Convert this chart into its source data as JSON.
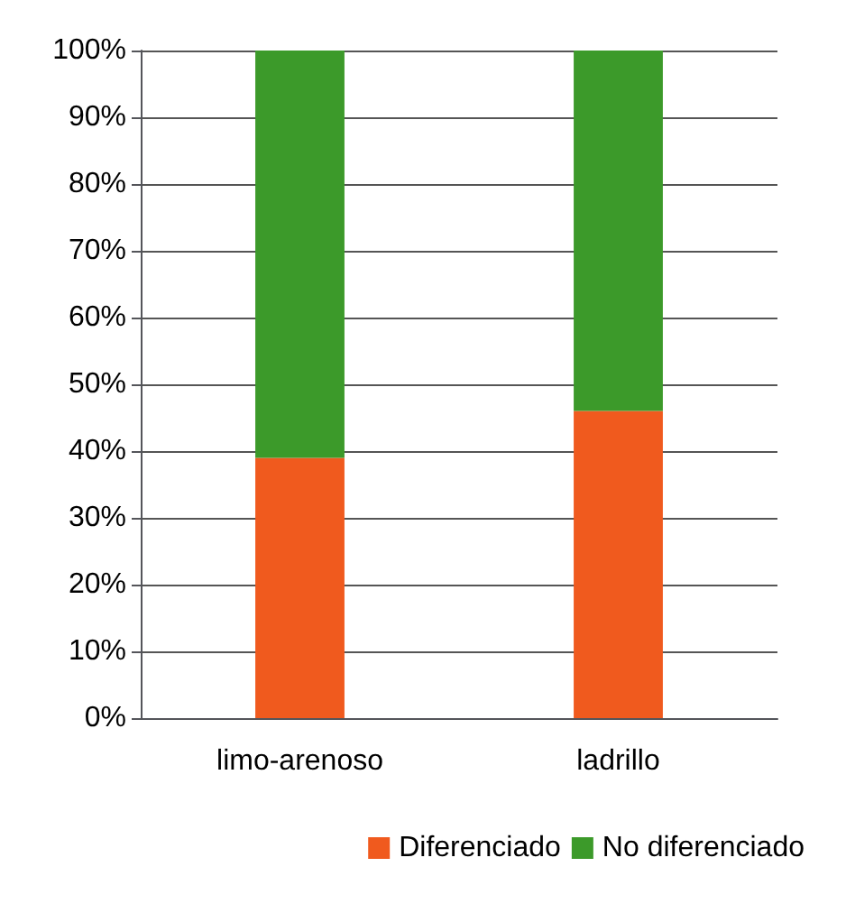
{
  "chart_data": {
    "type": "bar",
    "stacked": true,
    "categories": [
      "limo-arenoso",
      "ladrillo"
    ],
    "series": [
      {
        "name": "Diferenciado",
        "color": "#f05a1e",
        "values": [
          39,
          46
        ]
      },
      {
        "name": "No diferenciado",
        "color": "#3c9a2a",
        "values": [
          61,
          54
        ]
      }
    ],
    "ylim": [
      0,
      100
    ],
    "yticks": [
      {
        "value": 0,
        "label": "0%"
      },
      {
        "value": 10,
        "label": "10%"
      },
      {
        "value": 20,
        "label": "20%"
      },
      {
        "value": 30,
        "label": "30%"
      },
      {
        "value": 40,
        "label": "40%"
      },
      {
        "value": 50,
        "label": "50%"
      },
      {
        "value": 60,
        "label": "60%"
      },
      {
        "value": 70,
        "label": "70%"
      },
      {
        "value": 80,
        "label": "80%"
      },
      {
        "value": 90,
        "label": "90%"
      },
      {
        "value": 100,
        "label": "100%"
      }
    ],
    "grid": "y",
    "legend": "bottom right"
  }
}
